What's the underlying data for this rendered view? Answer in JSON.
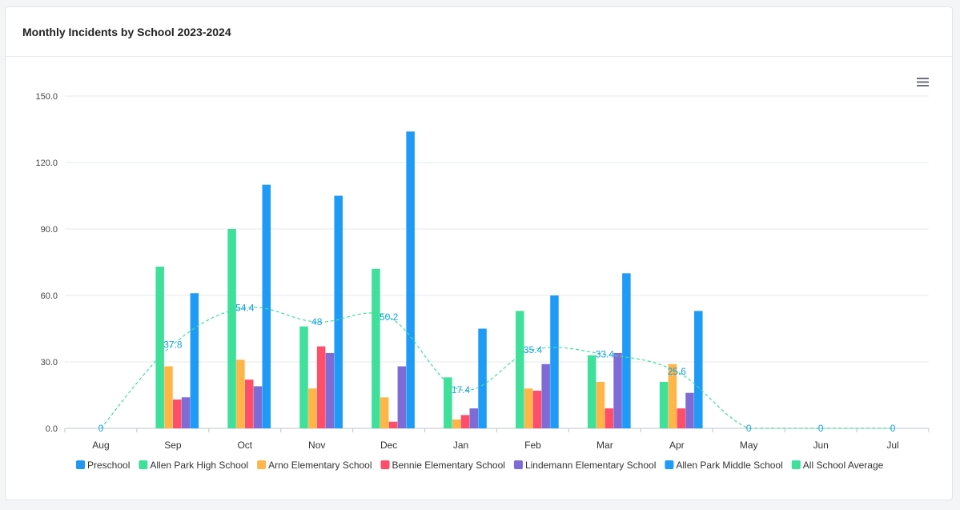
{
  "card": {
    "title": "Monthly Incidents by School 2023-2024"
  },
  "toolbar": {
    "menu_icon": "hamburger-menu-icon"
  },
  "chart_data": {
    "type": "bar",
    "title": "Monthly Incidents by School 2023-2024",
    "xlabel": "",
    "ylabel": "",
    "ylim": [
      0,
      150
    ],
    "yticks": [
      "0.0",
      "30.0",
      "60.0",
      "90.0",
      "120.0",
      "150.0"
    ],
    "categories": [
      "Aug",
      "Sep",
      "Oct",
      "Nov",
      "Dec",
      "Jan",
      "Feb",
      "Mar",
      "Apr",
      "May",
      "Jun",
      "Jul"
    ],
    "grid": true,
    "legend_position": "bottom",
    "series": [
      {
        "name": "Preschool",
        "type": "bar",
        "color": "#2196f3",
        "values": [
          0,
          0,
          0,
          0,
          0,
          0,
          0,
          0,
          0,
          0,
          0,
          0
        ]
      },
      {
        "name": "Allen Park High School",
        "type": "bar",
        "color": "#3ee09a",
        "values": [
          0,
          73,
          90,
          46,
          72,
          23,
          53,
          33,
          21,
          0,
          0,
          0
        ]
      },
      {
        "name": "Arno Elementary School",
        "type": "bar",
        "color": "#ffb547",
        "values": [
          0,
          28,
          31,
          18,
          14,
          4,
          18,
          21,
          29,
          0,
          0,
          0
        ]
      },
      {
        "name": "Bennie Elementary School",
        "type": "bar",
        "color": "#ff4d6a",
        "values": [
          0,
          13,
          22,
          37,
          3,
          6,
          17,
          9,
          9,
          0,
          0,
          0
        ]
      },
      {
        "name": "Lindemann Elementary School",
        "type": "bar",
        "color": "#7e6bd6",
        "values": [
          0,
          14,
          19,
          34,
          28,
          9,
          29,
          34,
          16,
          0,
          0,
          0
        ]
      },
      {
        "name": "Allen Park Middle School",
        "type": "bar",
        "color": "#1e9bf7",
        "values": [
          0,
          61,
          110,
          105,
          134,
          45,
          60,
          70,
          53,
          0,
          0,
          0
        ]
      },
      {
        "name": "All School Average",
        "type": "line",
        "style": "dashed",
        "color": "#3ee09a",
        "label_color": "#1aa0e8",
        "values": [
          0,
          37.8,
          54.4,
          48,
          50.2,
          17.4,
          35.4,
          33.4,
          25.6,
          0,
          0,
          0
        ],
        "labels": [
          "0",
          "37.8",
          "54.4",
          "48",
          "50.2",
          "17.4",
          "35.4",
          "33.4",
          "25.6",
          "0",
          "0",
          "0"
        ]
      }
    ]
  }
}
